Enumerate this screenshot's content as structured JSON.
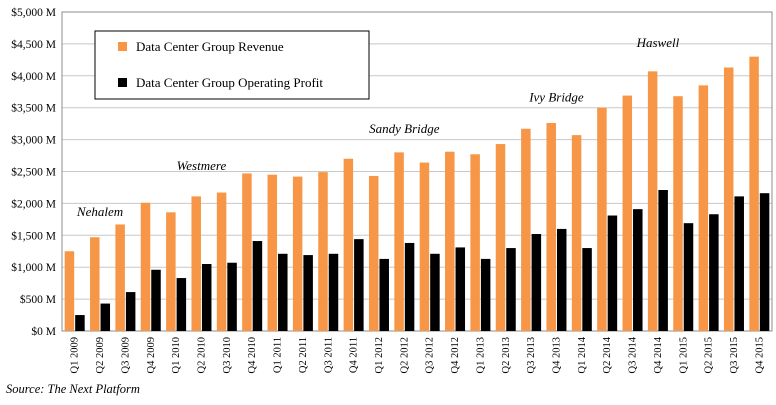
{
  "chart_data": {
    "type": "bar",
    "categories": [
      "Q1 2009",
      "Q2 2009",
      "Q3 2009",
      "Q4 2009",
      "Q1 2010",
      "Q2 2010",
      "Q3 2010",
      "Q4 2010",
      "Q1 2011",
      "Q2 2011",
      "Q3 2011",
      "Q4 2011",
      "Q1 2012",
      "Q2 2012",
      "Q3 2012",
      "Q4 2012",
      "Q1 2013",
      "Q2 2013",
      "Q3 2013",
      "Q4 2013",
      "Q1 2014",
      "Q2 2014",
      "Q3 2014",
      "Q4 2014",
      "Q1 2015",
      "Q2 2015",
      "Q3 2015",
      "Q4 2015"
    ],
    "series": [
      {
        "name": "Data Center Group Revenue",
        "color": "#f79646",
        "values": [
          1250,
          1470,
          1670,
          2010,
          1860,
          2110,
          2170,
          2470,
          2450,
          2420,
          2490,
          2700,
          2430,
          2800,
          2640,
          2810,
          2770,
          2930,
          3170,
          3260,
          3070,
          3500,
          3690,
          4070,
          3680,
          3850,
          4130,
          4300
        ]
      },
      {
        "name": "Data Center Group Operating Profit",
        "color": "#000000",
        "values": [
          250,
          430,
          610,
          960,
          830,
          1050,
          1070,
          1410,
          1210,
          1190,
          1210,
          1440,
          1130,
          1380,
          1210,
          1310,
          1130,
          1300,
          1520,
          1600,
          1300,
          1810,
          1910,
          2210,
          1690,
          1830,
          2110,
          2160
        ]
      }
    ],
    "ylim": [
      0,
      5000
    ],
    "yticks": [
      0,
      500,
      1000,
      1500,
      2000,
      2500,
      3000,
      3500,
      4000,
      4500,
      5000
    ],
    "ytick_labels": [
      "$0 M",
      "$500 M",
      "$1,000 M",
      "$1,500 M",
      "$2,000 M",
      "$2,500 M",
      "$3,000 M",
      "$3,500 M",
      "$4,000 M",
      "$4,500 M",
      "$5,000 M"
    ],
    "grid": true,
    "legend_position": "top-left",
    "annotations": [
      {
        "text": "Nehalem",
        "category": "Q2 2009",
        "y": 1800
      },
      {
        "text": "Westmere",
        "category": "Q2 2010",
        "y": 2520
      },
      {
        "text": "Sandy Bridge",
        "category": "Q2 2012",
        "y": 3100
      },
      {
        "text": "Ivy Bridge",
        "category": "Q4 2013",
        "y": 3600
      },
      {
        "text": "Haswell",
        "category": "Q4 2014",
        "y": 4450
      }
    ]
  },
  "source_note": "Source: The Next Platform"
}
